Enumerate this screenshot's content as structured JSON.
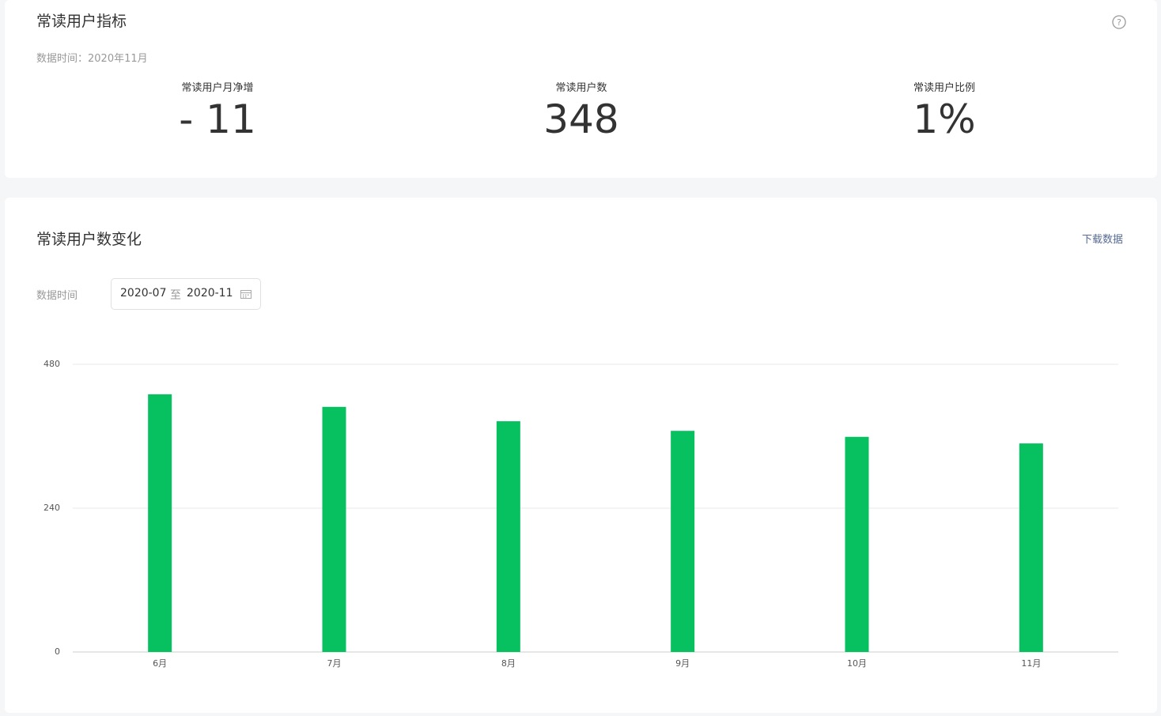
{
  "header": {
    "title": "常读用户指标",
    "data_time": "数据时间：2020年11月"
  },
  "metrics": [
    {
      "label": "常读用户月净增",
      "value": "- 11"
    },
    {
      "label": "常读用户数",
      "value": "348"
    },
    {
      "label": "常读用户比例",
      "value": "1%"
    }
  ],
  "chart_panel": {
    "title": "常读用户数变化",
    "download": "下载数据",
    "filter_label": "数据时间",
    "date_start": "2020-07",
    "date_separator": "至",
    "date_end": "2020-11"
  },
  "chart_data": {
    "type": "bar",
    "categories": [
      "6月",
      "7月",
      "8月",
      "9月",
      "10月",
      "11月"
    ],
    "values": [
      430,
      409,
      385,
      369,
      359,
      348
    ],
    "color": "#07c160",
    "ylim": [
      0,
      480
    ],
    "yticks": [
      0,
      240,
      480
    ],
    "grid": true
  }
}
